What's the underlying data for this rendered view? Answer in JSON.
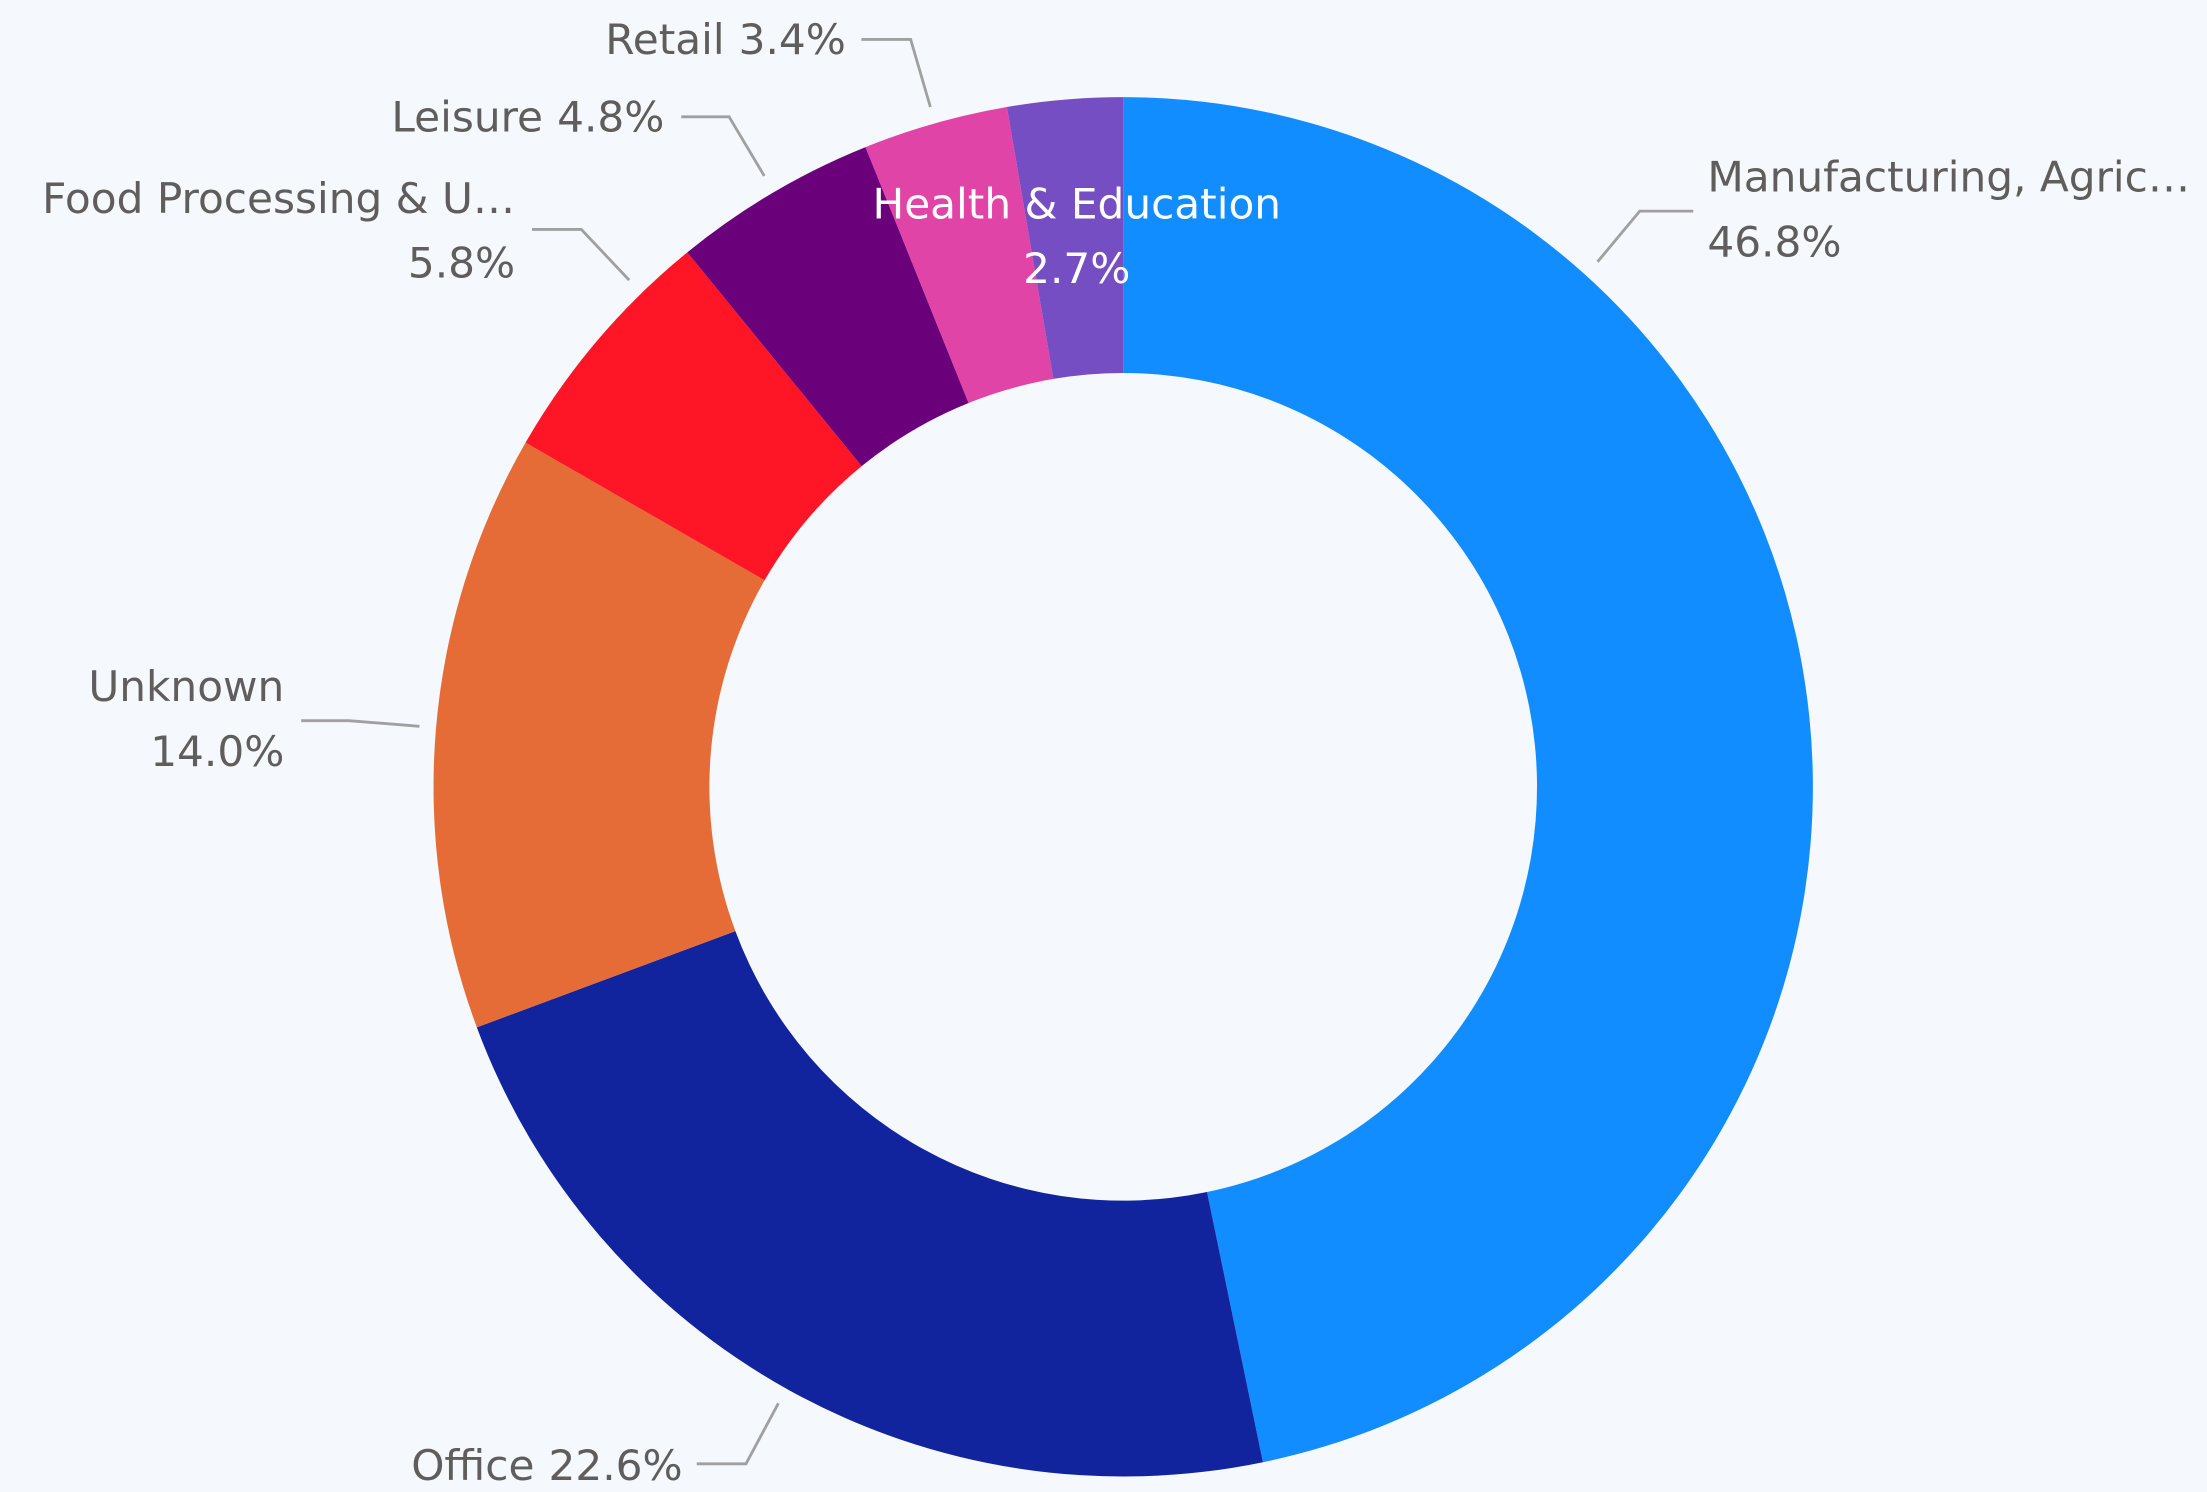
{
  "chart_data": {
    "type": "donut",
    "categories": [
      "Manufacturing, Agric…",
      "Office",
      "Unknown",
      "Food Processing & U…",
      "Leisure",
      "Retail",
      "Health & Education"
    ],
    "values": [
      46.8,
      22.6,
      14.0,
      5.8,
      4.8,
      3.4,
      2.7
    ],
    "value_labels": [
      "46.8%",
      "22.6%",
      "14.0%",
      "5.8%",
      "4.8%",
      "3.4%",
      "2.7%"
    ],
    "colors": [
      "#118dff",
      "#12239e",
      "#e66c37",
      "#fe1526",
      "#6b007b",
      "#e044a7",
      "#744ec2"
    ]
  }
}
